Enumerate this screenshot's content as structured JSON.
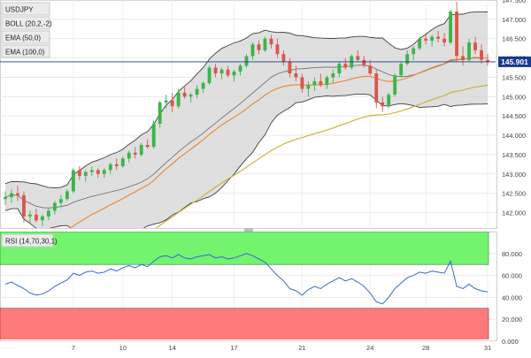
{
  "symbol": "USDJPY",
  "indicators": {
    "boll": "BOLL (20,2,-2)",
    "ema50": "EMA (50,0)",
    "ema100": "EMA (100,0)",
    "rsi": "RSI (14,70,30,1)"
  },
  "price_tag": "145.901",
  "colors": {
    "bull": "#3cb44a",
    "bear": "#d6584a",
    "boll_band": "#d9d9d9",
    "boll_line": "#404040",
    "ema50": "#f0852d",
    "ema100": "#c7b22c",
    "price_line": "#1b3a8c",
    "rsi_line": "#3a67d6",
    "rsi_overbought": "#74f36f",
    "rsi_oversold": "#ff7a7a"
  },
  "chart_data": [
    {
      "type": "candlestick",
      "yaxis_ticks": [
        "147.500",
        "147.000",
        "146.500",
        "146.000",
        "145.500",
        "145.000",
        "144.500",
        "144.000",
        "143.500",
        "143.000",
        "142.500",
        "142.000"
      ],
      "xaxis_ticks": [
        "7",
        "10",
        "14",
        "17",
        "21",
        "24",
        "28",
        "31"
      ],
      "ylim": [
        141.6,
        147.5
      ],
      "last_price": 145.901,
      "candles": [
        [
          142.35,
          142.55,
          142.2,
          142.4
        ],
        [
          142.4,
          142.6,
          142.25,
          142.5
        ],
        [
          142.5,
          142.7,
          142.3,
          142.45
        ],
        [
          142.45,
          142.55,
          141.75,
          141.9
        ],
        [
          141.9,
          142.05,
          141.7,
          141.95
        ],
        [
          141.95,
          142.1,
          141.75,
          141.8
        ],
        [
          141.8,
          141.95,
          141.65,
          141.9
        ],
        [
          141.9,
          142.1,
          141.8,
          142.05
        ],
        [
          142.05,
          142.3,
          141.95,
          142.25
        ],
        [
          142.25,
          142.45,
          142.15,
          142.35
        ],
        [
          142.35,
          142.6,
          142.3,
          142.55
        ],
        [
          142.55,
          143.15,
          142.5,
          143.1
        ],
        [
          143.1,
          143.2,
          142.85,
          142.95
        ],
        [
          142.95,
          143.1,
          142.8,
          143.05
        ],
        [
          143.05,
          143.2,
          142.95,
          143.1
        ],
        [
          143.1,
          143.15,
          142.9,
          143.0
        ],
        [
          143.0,
          143.15,
          142.9,
          143.1
        ],
        [
          143.1,
          143.3,
          143.0,
          143.25
        ],
        [
          143.25,
          143.4,
          143.1,
          143.2
        ],
        [
          143.2,
          143.45,
          143.15,
          143.4
        ],
        [
          143.4,
          143.6,
          143.3,
          143.55
        ],
        [
          143.55,
          143.7,
          143.4,
          143.5
        ],
        [
          143.5,
          143.8,
          143.45,
          143.75
        ],
        [
          143.75,
          143.9,
          143.65,
          143.7
        ],
        [
          143.7,
          144.4,
          143.65,
          144.3
        ],
        [
          144.3,
          144.9,
          144.2,
          144.85
        ],
        [
          144.85,
          145.05,
          144.7,
          144.9
        ],
        [
          144.9,
          145.1,
          144.6,
          144.75
        ],
        [
          144.75,
          145.2,
          144.7,
          145.1
        ],
        [
          145.1,
          145.25,
          144.95,
          145.0
        ],
        [
          145.0,
          145.1,
          144.85,
          145.05
        ],
        [
          145.05,
          145.3,
          144.95,
          145.2
        ],
        [
          145.2,
          145.4,
          145.1,
          145.35
        ],
        [
          145.35,
          145.8,
          145.3,
          145.75
        ],
        [
          145.75,
          145.85,
          145.5,
          145.6
        ],
        [
          145.6,
          145.75,
          145.45,
          145.7
        ],
        [
          145.7,
          145.8,
          145.5,
          145.55
        ],
        [
          145.55,
          145.7,
          145.4,
          145.65
        ],
        [
          145.65,
          145.85,
          145.55,
          145.8
        ],
        [
          145.8,
          146.1,
          145.75,
          146.05
        ],
        [
          146.05,
          146.4,
          145.95,
          146.35
        ],
        [
          146.35,
          146.45,
          146.1,
          146.2
        ],
        [
          146.2,
          146.55,
          146.15,
          146.5
        ],
        [
          146.5,
          146.6,
          146.25,
          146.35
        ],
        [
          146.35,
          146.5,
          146.0,
          146.1
        ],
        [
          146.1,
          146.2,
          145.8,
          145.9
        ],
        [
          145.9,
          146.0,
          145.5,
          145.6
        ],
        [
          145.6,
          145.8,
          145.4,
          145.5
        ],
        [
          145.5,
          145.6,
          145.1,
          145.2
        ],
        [
          145.2,
          145.4,
          145.0,
          145.3
        ],
        [
          145.3,
          145.5,
          145.15,
          145.4
        ],
        [
          145.4,
          145.6,
          145.25,
          145.3
        ],
        [
          145.3,
          145.55,
          145.2,
          145.5
        ],
        [
          145.5,
          145.7,
          145.35,
          145.6
        ],
        [
          145.6,
          145.9,
          145.5,
          145.85
        ],
        [
          145.85,
          146.0,
          145.7,
          145.75
        ],
        [
          145.75,
          146.1,
          145.7,
          146.05
        ],
        [
          146.05,
          146.2,
          145.9,
          145.95
        ],
        [
          145.95,
          146.05,
          145.75,
          145.8
        ],
        [
          145.8,
          145.95,
          145.55,
          145.6
        ],
        [
          145.6,
          145.7,
          144.7,
          144.85
        ],
        [
          144.85,
          145.0,
          144.6,
          144.75
        ],
        [
          144.75,
          145.1,
          144.7,
          145.05
        ],
        [
          145.05,
          145.6,
          145.0,
          145.55
        ],
        [
          145.55,
          145.9,
          145.5,
          145.85
        ],
        [
          145.85,
          146.2,
          145.8,
          146.1
        ],
        [
          146.1,
          146.3,
          145.95,
          146.25
        ],
        [
          146.25,
          146.55,
          146.2,
          146.5
        ],
        [
          146.5,
          146.65,
          146.35,
          146.45
        ],
        [
          146.45,
          146.6,
          146.3,
          146.55
        ],
        [
          146.55,
          146.7,
          146.4,
          146.5
        ],
        [
          146.5,
          146.65,
          146.3,
          146.4
        ],
        [
          146.4,
          147.25,
          146.35,
          147.2
        ],
        [
          147.2,
          147.45,
          145.9,
          146.05
        ],
        [
          146.05,
          146.3,
          145.8,
          145.95
        ],
        [
          145.95,
          146.5,
          145.9,
          146.4
        ],
        [
          146.4,
          146.55,
          146.1,
          146.2
        ],
        [
          146.2,
          146.35,
          145.85,
          145.95
        ],
        [
          145.95,
          146.1,
          145.8,
          145.9
        ]
      ]
    },
    {
      "type": "line",
      "name": "RSI (14,70,30,1)",
      "yaxis_ticks": [
        "80.000",
        "60.000",
        "40.000",
        "20.000",
        "0.000"
      ],
      "ylim": [
        0,
        100
      ],
      "overbought": 70,
      "oversold": 30,
      "values": [
        52,
        54,
        51,
        48,
        44,
        42,
        43,
        46,
        50,
        53,
        56,
        62,
        60,
        63,
        64,
        62,
        63,
        66,
        64,
        67,
        69,
        67,
        70,
        68,
        73,
        77,
        78,
        76,
        79,
        76,
        75,
        77,
        78,
        79,
        76,
        77,
        75,
        76,
        78,
        80,
        78,
        75,
        72,
        66,
        60,
        55,
        48,
        46,
        42,
        47,
        50,
        48,
        52,
        55,
        58,
        55,
        57,
        54,
        50,
        44,
        36,
        34,
        40,
        48,
        53,
        58,
        60,
        63,
        62,
        64,
        63,
        62,
        73,
        50,
        48,
        52,
        48,
        46,
        45
      ]
    }
  ]
}
